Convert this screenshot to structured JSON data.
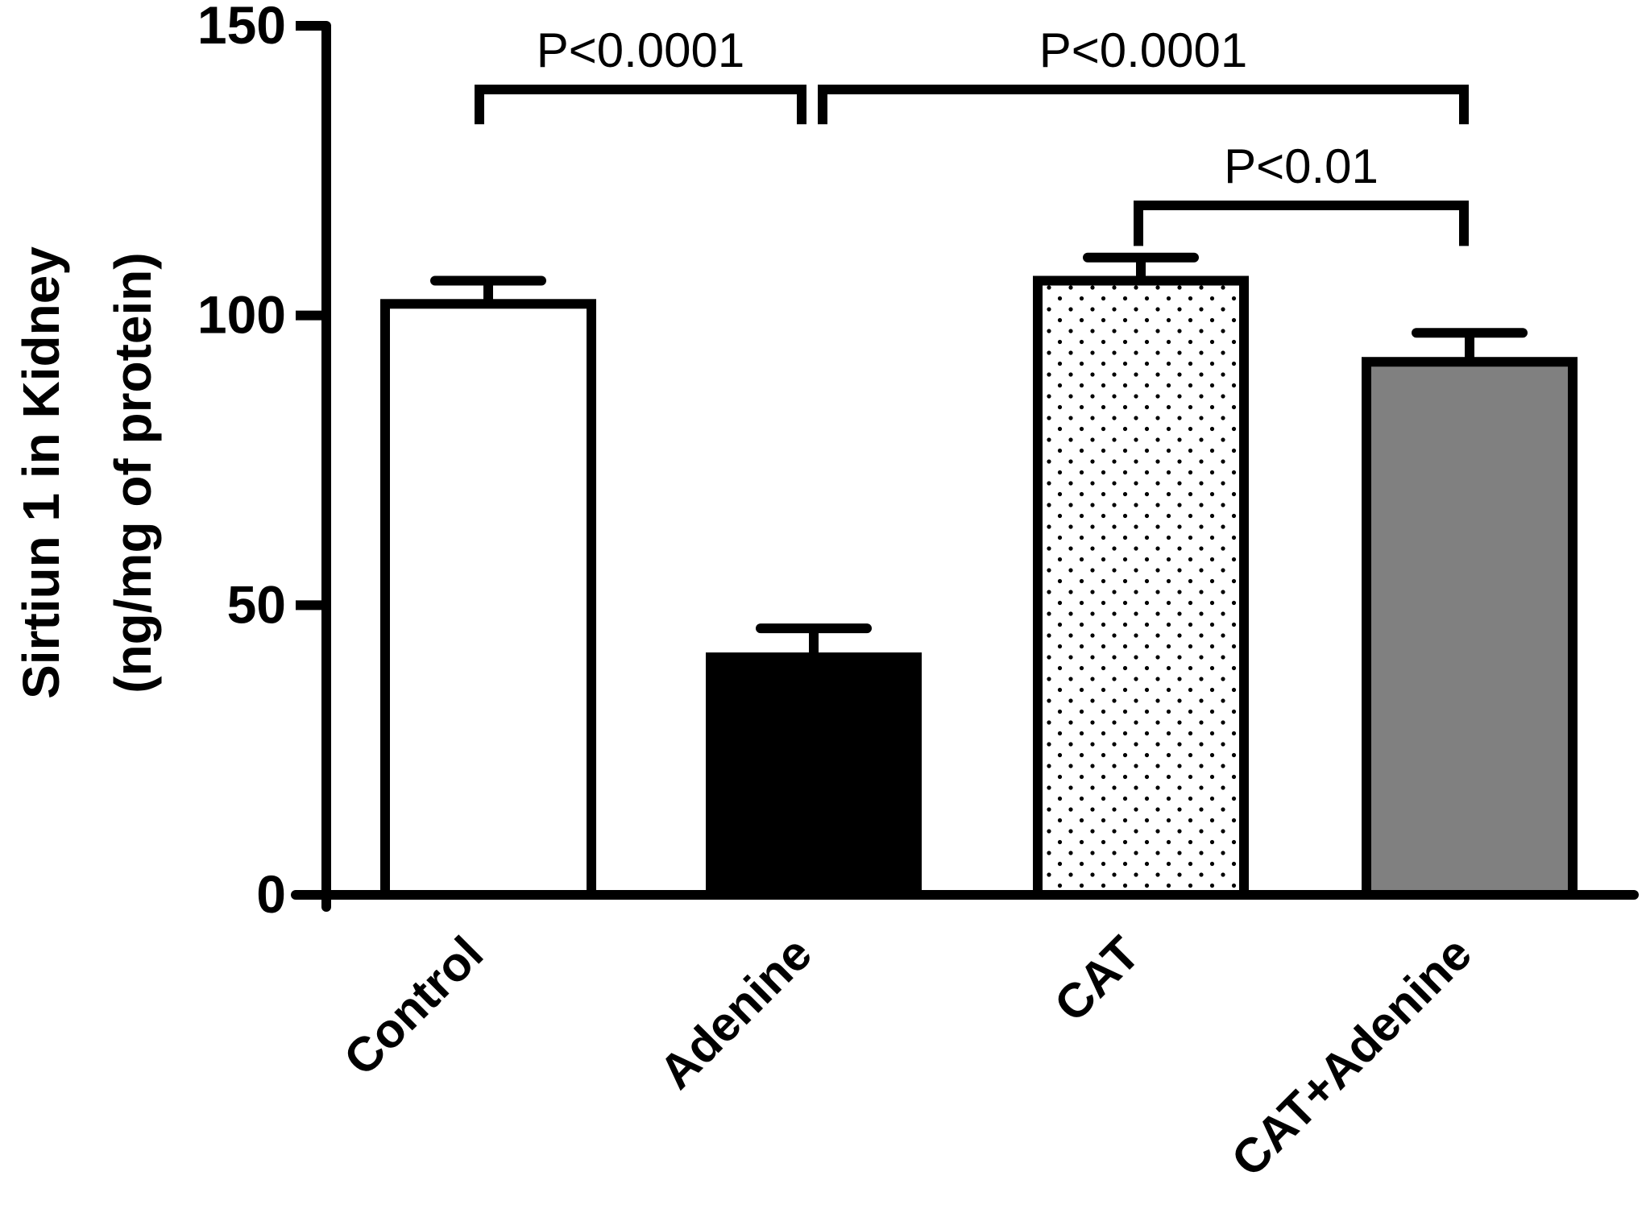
{
  "chart_data": {
    "type": "bar",
    "title": "",
    "xlabel": "",
    "ylabel_lines": [
      "Sirtiun 1 in Kidney",
      "(ng/mg of protein)"
    ],
    "ylim": [
      0,
      150
    ],
    "yticks": [
      0,
      50,
      100,
      150
    ],
    "categories": [
      "Control",
      "Adenine",
      "CAT",
      "CAT+Adenine"
    ],
    "values": [
      102,
      41,
      106,
      92
    ],
    "errors": [
      4,
      5,
      4,
      5
    ],
    "fills": [
      "white",
      "black",
      "dots",
      "gray"
    ],
    "fill_colors": {
      "white": "#ffffff",
      "black": "#000000",
      "gray": "#808080",
      "dot": "#000000"
    },
    "significance": [
      {
        "from": 0,
        "to": 1,
        "label": "P<0.0001",
        "y": 139,
        "drop_left": 6,
        "drop_right": 6
      },
      {
        "from": 1,
        "to": 3,
        "label": "P<0.0001",
        "y": 139,
        "drop_left": 6,
        "drop_right": 6
      },
      {
        "from": 2,
        "to": 3,
        "label": "P<0.01",
        "y": 119,
        "drop_left": 7,
        "drop_right": 7
      }
    ]
  }
}
